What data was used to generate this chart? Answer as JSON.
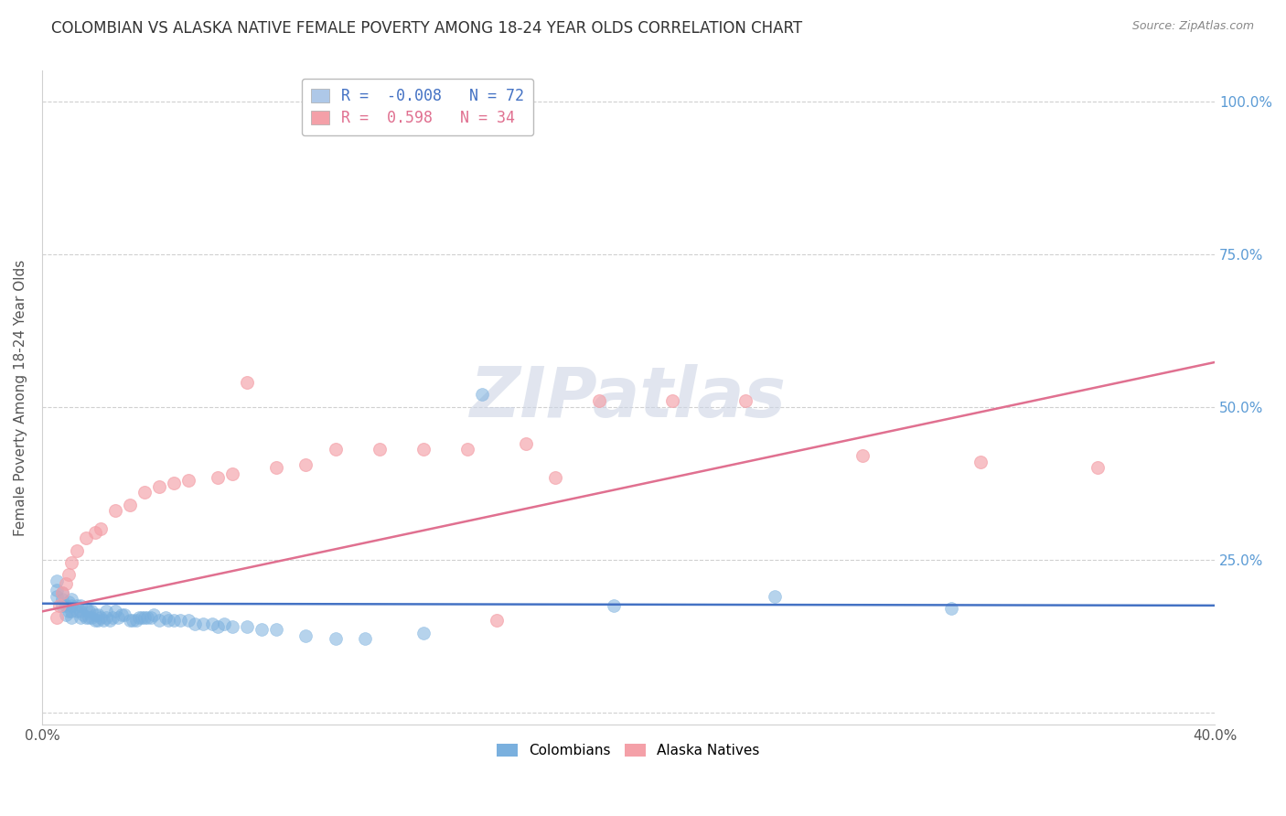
{
  "title": "COLOMBIAN VS ALASKA NATIVE FEMALE POVERTY AMONG 18-24 YEAR OLDS CORRELATION CHART",
  "source": "Source: ZipAtlas.com",
  "ylabel": "Female Poverty Among 18-24 Year Olds",
  "xlim": [
    0.0,
    0.4
  ],
  "ylim": [
    -0.02,
    1.05
  ],
  "yticks": [
    0.0,
    0.25,
    0.5,
    0.75,
    1.0
  ],
  "ytick_labels": [
    "",
    "25.0%",
    "50.0%",
    "75.0%",
    "100.0%"
  ],
  "xticks": [
    0.0,
    0.1,
    0.2,
    0.3,
    0.4
  ],
  "xtick_labels": [
    "0.0%",
    "",
    "",
    "",
    "40.0%"
  ],
  "watermark": "ZIPatlas",
  "colombians": {
    "color": "#7ab0de",
    "R": -0.008,
    "N": 72,
    "x": [
      0.005,
      0.005,
      0.005,
      0.007,
      0.007,
      0.007,
      0.008,
      0.008,
      0.009,
      0.009,
      0.01,
      0.01,
      0.01,
      0.01,
      0.012,
      0.012,
      0.013,
      0.013,
      0.013,
      0.014,
      0.015,
      0.015,
      0.016,
      0.016,
      0.017,
      0.017,
      0.018,
      0.018,
      0.019,
      0.019,
      0.02,
      0.021,
      0.022,
      0.022,
      0.023,
      0.024,
      0.025,
      0.026,
      0.027,
      0.028,
      0.03,
      0.031,
      0.032,
      0.033,
      0.034,
      0.035,
      0.036,
      0.037,
      0.038,
      0.04,
      0.042,
      0.043,
      0.045,
      0.047,
      0.05,
      0.052,
      0.055,
      0.058,
      0.06,
      0.062,
      0.065,
      0.07,
      0.075,
      0.08,
      0.09,
      0.1,
      0.11,
      0.13,
      0.15,
      0.195,
      0.25,
      0.31
    ],
    "y": [
      0.19,
      0.2,
      0.215,
      0.175,
      0.185,
      0.195,
      0.16,
      0.175,
      0.165,
      0.18,
      0.155,
      0.165,
      0.175,
      0.185,
      0.165,
      0.175,
      0.155,
      0.165,
      0.175,
      0.16,
      0.155,
      0.17,
      0.155,
      0.165,
      0.155,
      0.165,
      0.15,
      0.16,
      0.15,
      0.16,
      0.155,
      0.15,
      0.155,
      0.165,
      0.15,
      0.155,
      0.165,
      0.155,
      0.16,
      0.16,
      0.15,
      0.15,
      0.15,
      0.155,
      0.155,
      0.155,
      0.155,
      0.155,
      0.16,
      0.15,
      0.155,
      0.15,
      0.15,
      0.15,
      0.15,
      0.145,
      0.145,
      0.145,
      0.14,
      0.145,
      0.14,
      0.14,
      0.135,
      0.135,
      0.125,
      0.12,
      0.12,
      0.13,
      0.52,
      0.175,
      0.19,
      0.17
    ]
  },
  "alaska_natives": {
    "color": "#f4a0a8",
    "R": 0.598,
    "N": 34,
    "x": [
      0.005,
      0.006,
      0.007,
      0.008,
      0.009,
      0.01,
      0.012,
      0.015,
      0.018,
      0.02,
      0.025,
      0.03,
      0.035,
      0.04,
      0.045,
      0.05,
      0.06,
      0.065,
      0.07,
      0.08,
      0.09,
      0.1,
      0.115,
      0.13,
      0.145,
      0.155,
      0.165,
      0.175,
      0.19,
      0.215,
      0.24,
      0.28,
      0.32,
      0.36
    ],
    "y": [
      0.155,
      0.175,
      0.195,
      0.21,
      0.225,
      0.245,
      0.265,
      0.285,
      0.295,
      0.3,
      0.33,
      0.34,
      0.36,
      0.37,
      0.375,
      0.38,
      0.385,
      0.39,
      0.54,
      0.4,
      0.405,
      0.43,
      0.43,
      0.43,
      0.43,
      0.15,
      0.44,
      0.385,
      0.51,
      0.51,
      0.51,
      0.42,
      0.41,
      0.4
    ]
  },
  "title_color": "#333333",
  "title_fontsize": 12,
  "axis_label_color": "#555555",
  "tick_label_color_right": "#5b9bd5",
  "tick_label_color_bottom": "#555555",
  "grid_color": "#d0d0d0",
  "background_color": "#ffffff",
  "reg_line_colombians_color": "#4472c4",
  "reg_line_alaska_color": "#e07090",
  "legend_box_color_colombians": "#aec8e8",
  "legend_box_color_alaska": "#f4a0a8",
  "legend_text_colombians_color": "#4472c4",
  "legend_text_alaska_color": "#e07090",
  "watermark_color": "#cdd5e5",
  "watermark_fontsize": 55,
  "reg_intercept_col": 0.178,
  "reg_slope_col": -0.008,
  "reg_intercept_ak": 0.165,
  "reg_slope_ak": 1.02
}
